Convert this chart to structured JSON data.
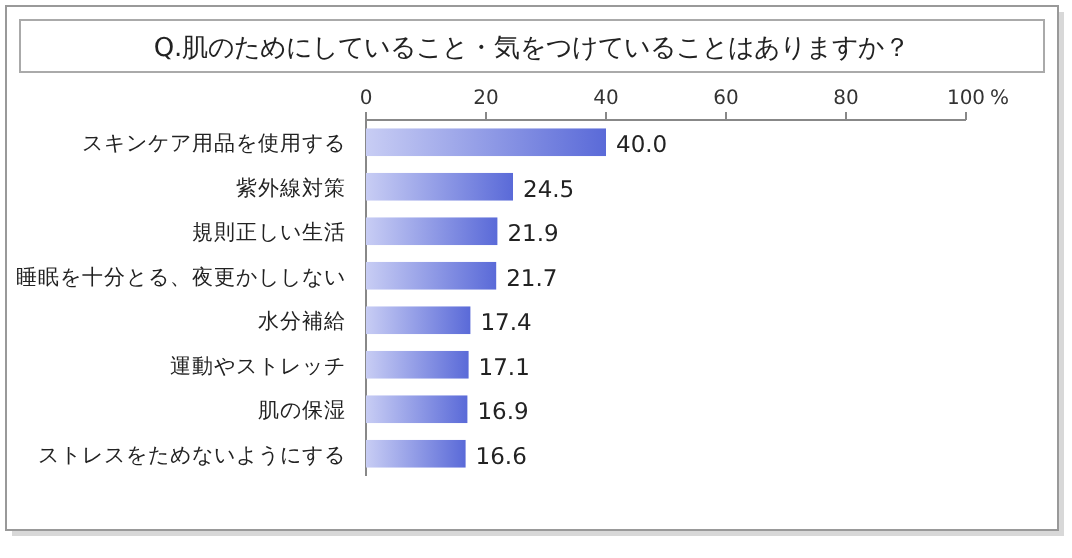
{
  "chart_data": {
    "type": "bar",
    "orientation": "horizontal",
    "title": "Q.肌のためにしていること・気をつけていることはありますか？",
    "xlabel": "%",
    "categories": [
      "スキンケア用品を使用する",
      "紫外線対策",
      "規則正しい生活",
      "睡眠を十分とる、夜更かししない",
      "水分補給",
      "運動やストレッチ",
      "肌の保湿",
      "ストレスをためないようにする"
    ],
    "values": [
      40.0,
      24.5,
      21.9,
      21.7,
      17.4,
      17.1,
      16.9,
      16.6
    ],
    "value_labels": [
      "40.0",
      "24.5",
      "21.9",
      "21.7",
      "17.4",
      "17.1",
      "16.9",
      "16.6"
    ],
    "color": "#5a6ad8",
    "xlim": [
      0,
      100
    ],
    "xticks": [
      0,
      20,
      40,
      60,
      80,
      100
    ],
    "grid": false
  }
}
